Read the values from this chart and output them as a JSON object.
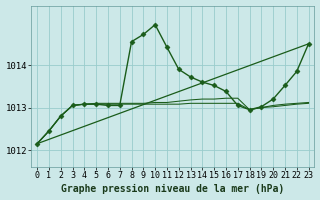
{
  "title": "Graphe pression niveau de la mer (hPa)",
  "bg_color": "#cce8e8",
  "grid_color": "#99cccc",
  "line_color": "#1a5c1a",
  "xlim": [
    -0.5,
    23.5
  ],
  "ylim": [
    1011.6,
    1015.4
  ],
  "yticks": [
    1012,
    1013,
    1014
  ],
  "xticks": [
    0,
    1,
    2,
    3,
    4,
    5,
    6,
    7,
    8,
    9,
    10,
    11,
    12,
    13,
    14,
    15,
    16,
    17,
    18,
    19,
    20,
    21,
    22,
    23
  ],
  "lines": [
    {
      "x": [
        0,
        1,
        2,
        3,
        4,
        5,
        6,
        7,
        8,
        9,
        10,
        11,
        12,
        13,
        14,
        15,
        16,
        17,
        18,
        19,
        20,
        21,
        22,
        23
      ],
      "y": [
        1012.15,
        1012.45,
        1012.8,
        1013.05,
        1013.08,
        1013.08,
        1013.05,
        1013.05,
        1014.55,
        1014.72,
        1014.95,
        1014.42,
        1013.9,
        1013.72,
        1013.6,
        1013.52,
        1013.38,
        1013.05,
        1012.95,
        1013.02,
        1013.2,
        1013.52,
        1013.85,
        1014.5
      ],
      "marker": "D",
      "markersize": 2.5,
      "linewidth": 1.0,
      "zorder": 5
    },
    {
      "x": [
        0,
        23
      ],
      "y": [
        1012.15,
        1014.5
      ],
      "marker": null,
      "markersize": 0,
      "linewidth": 0.9,
      "zorder": 3
    },
    {
      "x": [
        0,
        1,
        2,
        3,
        4,
        5,
        6,
        7,
        8,
        9,
        10,
        11,
        12,
        13,
        14,
        15,
        16,
        17,
        18,
        19,
        20,
        21,
        22,
        23
      ],
      "y": [
        1012.15,
        1012.45,
        1012.8,
        1013.05,
        1013.08,
        1013.1,
        1013.1,
        1013.1,
        1013.1,
        1013.1,
        1013.12,
        1013.12,
        1013.15,
        1013.18,
        1013.2,
        1013.2,
        1013.22,
        1013.22,
        1012.95,
        1013.0,
        1013.05,
        1013.08,
        1013.1,
        1013.12
      ],
      "marker": null,
      "markersize": 0,
      "linewidth": 0.75,
      "zorder": 3
    },
    {
      "x": [
        0,
        1,
        2,
        3,
        4,
        5,
        6,
        7,
        8,
        9,
        10,
        11,
        12,
        13,
        14,
        15,
        16,
        17,
        18,
        19,
        20,
        21,
        22,
        23
      ],
      "y": [
        1012.15,
        1012.45,
        1012.8,
        1013.05,
        1013.08,
        1013.08,
        1013.08,
        1013.08,
        1013.08,
        1013.08,
        1013.08,
        1013.08,
        1013.08,
        1013.1,
        1013.1,
        1013.1,
        1013.1,
        1013.1,
        1012.95,
        1013.0,
        1013.02,
        1013.05,
        1013.08,
        1013.1
      ],
      "marker": null,
      "markersize": 0,
      "linewidth": 0.75,
      "zorder": 3
    }
  ],
  "tick_fontsize": 6,
  "title_fontsize": 7,
  "title_fontweight": "bold"
}
